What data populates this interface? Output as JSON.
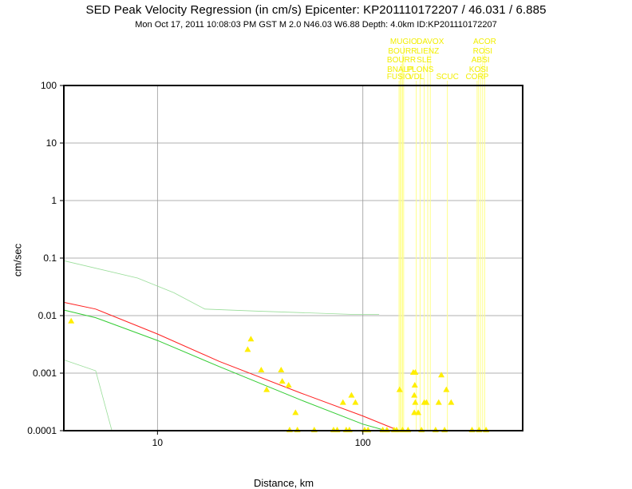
{
  "chart_data": {
    "type": "scatter",
    "title": "SED Peak Velocity Regression (in cm/s) Epicenter: KP201110172207 / 46.031 / 6.885",
    "subtitle": "Mon Oct 17, 2011 10:08:03 PM GST   M 2.0   N46.03 W6.88   Depth: 4.0km   ID:KP201110172207",
    "xlabel": "Distance, km",
    "ylabel": "cm/sec",
    "x_scale": "log",
    "y_scale": "log",
    "xlim": [
      3.5,
      600
    ],
    "ylim": [
      0.0001,
      100
    ],
    "x_ticks": [
      {
        "v": 10,
        "label": "10"
      },
      {
        "v": 100,
        "label": "100"
      }
    ],
    "y_ticks": [
      {
        "v": 100,
        "label": "100"
      },
      {
        "v": 10,
        "label": "10"
      },
      {
        "v": 1,
        "label": "1"
      },
      {
        "v": 0.1,
        "label": "0.1"
      },
      {
        "v": 0.01,
        "label": "0.01"
      },
      {
        "v": 0.001,
        "label": "0.001"
      },
      {
        "v": 0.0001,
        "label": "0.0001"
      }
    ],
    "grid": true,
    "colors": {
      "points": "#ffee00",
      "regression": "#ff2020",
      "fit": "#33cc33",
      "bounds": "#99dd99",
      "station_lines": "#ffff88",
      "station_text": "#f2ee00"
    },
    "points": [
      {
        "x": 3.8,
        "y": 0.0078
      },
      {
        "x": 27.5,
        "y": 0.0025
      },
      {
        "x": 28.5,
        "y": 0.0038
      },
      {
        "x": 32,
        "y": 0.0011
      },
      {
        "x": 34,
        "y": 0.0005
      },
      {
        "x": 40,
        "y": 0.0011
      },
      {
        "x": 40.5,
        "y": 0.0007
      },
      {
        "x": 43.5,
        "y": 0.0006
      },
      {
        "x": 47,
        "y": 0.0002
      },
      {
        "x": 44,
        "y": 0.0001
      },
      {
        "x": 48,
        "y": 0.0001
      },
      {
        "x": 58,
        "y": 0.0001
      },
      {
        "x": 72,
        "y": 0.0001
      },
      {
        "x": 75,
        "y": 0.0001
      },
      {
        "x": 80,
        "y": 0.0003
      },
      {
        "x": 83,
        "y": 0.0001
      },
      {
        "x": 86,
        "y": 0.0001
      },
      {
        "x": 88,
        "y": 0.0004
      },
      {
        "x": 92,
        "y": 0.0003
      },
      {
        "x": 102,
        "y": 0.0001
      },
      {
        "x": 106,
        "y": 0.0001
      },
      {
        "x": 125,
        "y": 0.0001
      },
      {
        "x": 131,
        "y": 0.0001
      },
      {
        "x": 142,
        "y": 0.0001
      },
      {
        "x": 146,
        "y": 0.0001
      },
      {
        "x": 151,
        "y": 0.0005
      },
      {
        "x": 156,
        "y": 0.0001
      },
      {
        "x": 166,
        "y": 0.0001
      },
      {
        "x": 176,
        "y": 0.001
      },
      {
        "x": 180,
        "y": 0.001
      },
      {
        "x": 179,
        "y": 0.0006
      },
      {
        "x": 178,
        "y": 0.0004
      },
      {
        "x": 180,
        "y": 0.0003
      },
      {
        "x": 178,
        "y": 0.0002
      },
      {
        "x": 186,
        "y": 0.0002
      },
      {
        "x": 199,
        "y": 0.0003
      },
      {
        "x": 204,
        "y": 0.0003
      },
      {
        "x": 193,
        "y": 0.0001
      },
      {
        "x": 226,
        "y": 0.0001
      },
      {
        "x": 234,
        "y": 0.0003
      },
      {
        "x": 241,
        "y": 0.0009
      },
      {
        "x": 255,
        "y": 0.0005
      },
      {
        "x": 269,
        "y": 0.0003
      },
      {
        "x": 250,
        "y": 0.0001
      },
      {
        "x": 340,
        "y": 0.0001
      },
      {
        "x": 368,
        "y": 0.0001
      },
      {
        "x": 398,
        "y": 0.0001
      }
    ],
    "regression_line": [
      {
        "x": 3.5,
        "y": 0.017
      },
      {
        "x": 5,
        "y": 0.013
      },
      {
        "x": 10,
        "y": 0.0048
      },
      {
        "x": 20,
        "y": 0.0016
      },
      {
        "x": 50,
        "y": 0.00045
      },
      {
        "x": 100,
        "y": 0.00018
      },
      {
        "x": 150,
        "y": 0.0001
      }
    ],
    "fit_line": [
      {
        "x": 3.5,
        "y": 0.0125
      },
      {
        "x": 5,
        "y": 0.0092
      },
      {
        "x": 10,
        "y": 0.0037
      },
      {
        "x": 20,
        "y": 0.0013
      },
      {
        "x": 50,
        "y": 0.00034
      },
      {
        "x": 100,
        "y": 0.00013
      },
      {
        "x": 130,
        "y": 0.0001
      }
    ],
    "upper_bound": [
      {
        "x": 3.5,
        "y": 0.09
      },
      {
        "x": 8,
        "y": 0.045
      },
      {
        "x": 12,
        "y": 0.025
      },
      {
        "x": 17,
        "y": 0.013
      },
      {
        "x": 30,
        "y": 0.012
      },
      {
        "x": 90,
        "y": 0.0105
      },
      {
        "x": 120,
        "y": 0.0105
      }
    ],
    "lower_bound": [
      {
        "x": 3.5,
        "y": 0.0017
      },
      {
        "x": 5,
        "y": 0.0011
      },
      {
        "x": 6,
        "y": 0.0001
      }
    ],
    "stations": [
      {
        "name": "FUSIO",
        "x": 150,
        "row": 0
      },
      {
        "name": "BNALP",
        "x": 152,
        "row": 1
      },
      {
        "name": "BOURR",
        "x": 154,
        "row": 2
      },
      {
        "name": "BOURR",
        "x": 156,
        "row": 3
      },
      {
        "name": "MUGIO",
        "x": 158,
        "row": 4
      },
      {
        "name": "VDL",
        "x": 182,
        "row": 0
      },
      {
        "name": "PLONS",
        "x": 190,
        "row": 1
      },
      {
        "name": "SLE",
        "x": 199,
        "row": 2
      },
      {
        "name": "LIENZ",
        "x": 207,
        "row": 3
      },
      {
        "name": "DAVOX",
        "x": 213,
        "row": 4
      },
      {
        "name": "SCUC",
        "x": 258,
        "row": 0
      },
      {
        "name": "CORP",
        "x": 360,
        "row": 0
      },
      {
        "name": "KOSI",
        "x": 366,
        "row": 1
      },
      {
        "name": "ABSI",
        "x": 374,
        "row": 2
      },
      {
        "name": "ROSI",
        "x": 383,
        "row": 3
      },
      {
        "name": "ACOR",
        "x": 392,
        "row": 4
      }
    ]
  }
}
